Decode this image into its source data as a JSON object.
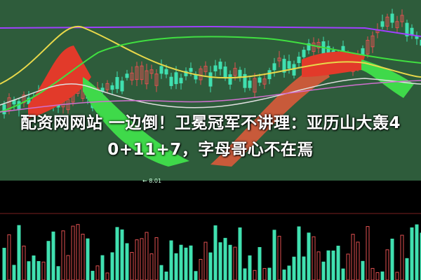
{
  "headline": {
    "line1": "配资网网站 一边倒！卫冕冠军不讲理：亚历山大轰4",
    "line2": "0+11+7，字母哥心不在焉"
  },
  "chart_data": {
    "type": "candlestick",
    "title": "",
    "annotations": [
      "← 8.01"
    ],
    "colors": {
      "background_upper": "#2e5c3b",
      "background_lower": "#000000",
      "up": "#e05050",
      "down": "#40e0b0",
      "band_bull": "#e03a2a",
      "band_bear": "#3fd94a",
      "purple_line": "#a040ff",
      "yellow_line": "#e8d84a",
      "green_line": "#40e040"
    }
  }
}
